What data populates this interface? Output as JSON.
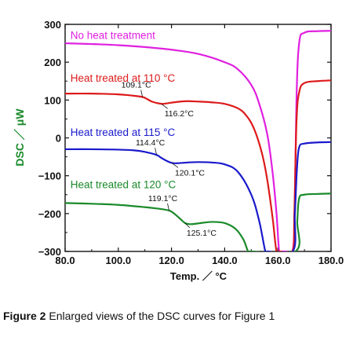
{
  "chart_data": {
    "type": "line",
    "title": "",
    "xlabel": "Temp.  ／ °C",
    "ylabel": "DSC  ／ μW",
    "xlim": [
      80,
      180
    ],
    "ylim": [
      -300,
      300
    ],
    "xticks": [
      "80.0",
      "100.0",
      "120.0",
      "140.0",
      "160.0",
      "180.0"
    ],
    "yticks": [
      "300",
      "200",
      "100",
      "0",
      "−100",
      "−200",
      "−300"
    ],
    "grid": false,
    "series": [
      {
        "name": "No heat treatment",
        "color": "#e020e0",
        "x": [
          80,
          90,
          100,
          110,
          120,
          130,
          140,
          145,
          150,
          153,
          156,
          158,
          159.5,
          160.5,
          161.5,
          163,
          165.5,
          166.3,
          167,
          168,
          170,
          175,
          180
        ],
        "y": [
          250,
          248,
          245,
          240,
          233,
          222,
          200,
          181,
          140,
          90,
          10,
          -90,
          -200,
          -300,
          -300,
          -300,
          -300,
          -200,
          100,
          250,
          278,
          282,
          283
        ]
      },
      {
        "name": "Heat treated at 110 °C",
        "color": "#dd1a1a",
        "x": [
          80,
          90,
          100,
          105,
          109.1,
          111,
          113,
          116.2,
          118,
          122,
          126,
          130,
          135,
          140,
          145,
          148,
          151,
          154,
          156,
          158,
          159.5,
          160.7,
          165.5,
          166.2,
          167,
          168,
          170,
          175,
          180
        ],
        "y": [
          117,
          117,
          115,
          112,
          108,
          102,
          95,
          90,
          91,
          95,
          97,
          96,
          94,
          90,
          78,
          60,
          25,
          -40,
          -110,
          -210,
          -300,
          -300,
          -300,
          -200,
          40,
          120,
          145,
          150,
          152
        ]
      },
      {
        "name": "Heat treated at 115 °C",
        "color": "#1a1acc",
        "x": [
          80,
          90,
          100,
          106,
          110,
          114.4,
          116,
          118,
          120.1,
          122,
          126,
          130,
          135,
          140,
          145,
          150,
          153,
          155.3,
          156.2,
          165.6,
          166.4,
          167.2,
          168,
          170,
          175,
          180
        ],
        "y": [
          -30,
          -30,
          -31,
          -33,
          -37,
          -45,
          -52,
          -60,
          -66,
          -67,
          -65,
          -64,
          -65,
          -70,
          -90,
          -150,
          -220,
          -300,
          -300,
          -300,
          -200,
          -80,
          -25,
          -15,
          -12,
          -11
        ]
      },
      {
        "name": "Heat treated at 120 °C",
        "color": "#1a8a2a",
        "x": [
          80,
          90,
          100,
          110,
          115,
          119.1,
          121,
          123,
          125.1,
          127,
          130,
          135,
          140,
          144,
          147,
          148.8,
          149.7,
          166.6,
          167.3,
          168,
          170,
          175,
          180
        ],
        "y": [
          -172,
          -174,
          -177,
          -183,
          -187,
          -192,
          -200,
          -212,
          -225,
          -228,
          -226,
          -222,
          -225,
          -240,
          -268,
          -300,
          -300,
          -300,
          -220,
          -160,
          -150,
          -148,
          -147
        ]
      }
    ],
    "annotations": [
      {
        "text": "109.1°C",
        "x": 109.1,
        "y": 108,
        "series": 1
      },
      {
        "text": "116.2°C",
        "x": 116.2,
        "y": 90,
        "series": 1
      },
      {
        "text": "114.4°C",
        "x": 114.4,
        "y": -45,
        "series": 2
      },
      {
        "text": "120.1°C",
        "x": 120.1,
        "y": -66,
        "series": 2
      },
      {
        "text": "119.1°C",
        "x": 119.1,
        "y": -192,
        "series": 3
      },
      {
        "text": "125.1°C",
        "x": 125.1,
        "y": -225,
        "series": 3
      }
    ]
  },
  "caption": {
    "label": "Figure 2",
    "text": " Enlarged views of the DSC curves for Figure 1"
  }
}
